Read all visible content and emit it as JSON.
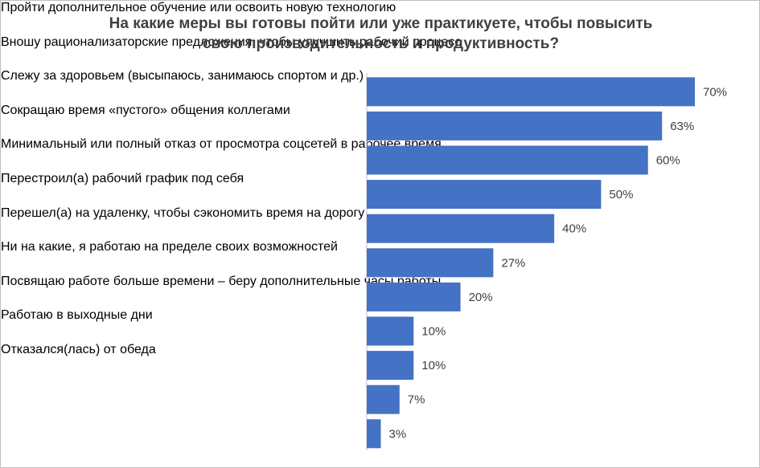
{
  "chart_data": {
    "type": "bar",
    "orientation": "horizontal",
    "title": "На какие меры вы готовы пойти или уже практикуете, чтобы повысить свою производительность и продуктивность?",
    "categories": [
      "Пройти дополнительное обучение или освоить новую технологию",
      "Вношу рационализаторские предложения, чтобы улучшить рабочий процесс",
      "Слежу за здоровьем (высыпаюсь, занимаюсь спортом и др.)",
      "Сокращаю время «пустого» общения коллегами",
      "Минимальный или полный отказ от просмотра соцсетей в рабочее время",
      "Перестроил(а) рабочий график под себя",
      "Перешел(а) на удаленку, чтобы сэкономить время на дорогу",
      "Ни на какие, я работаю на пределе своих возможностей",
      "Посвящаю работе больше времени – беру дополнительные часы работы",
      "Работаю в выходные дни",
      "Отказался(лась) от обеда"
    ],
    "values": [
      70,
      63,
      60,
      50,
      40,
      27,
      20,
      10,
      10,
      7,
      3
    ],
    "value_labels": [
      "70%",
      "63%",
      "60%",
      "50%",
      "40%",
      "27%",
      "20%",
      "10%",
      "10%",
      "7%",
      "3%"
    ],
    "color": "#4472c4"
  }
}
